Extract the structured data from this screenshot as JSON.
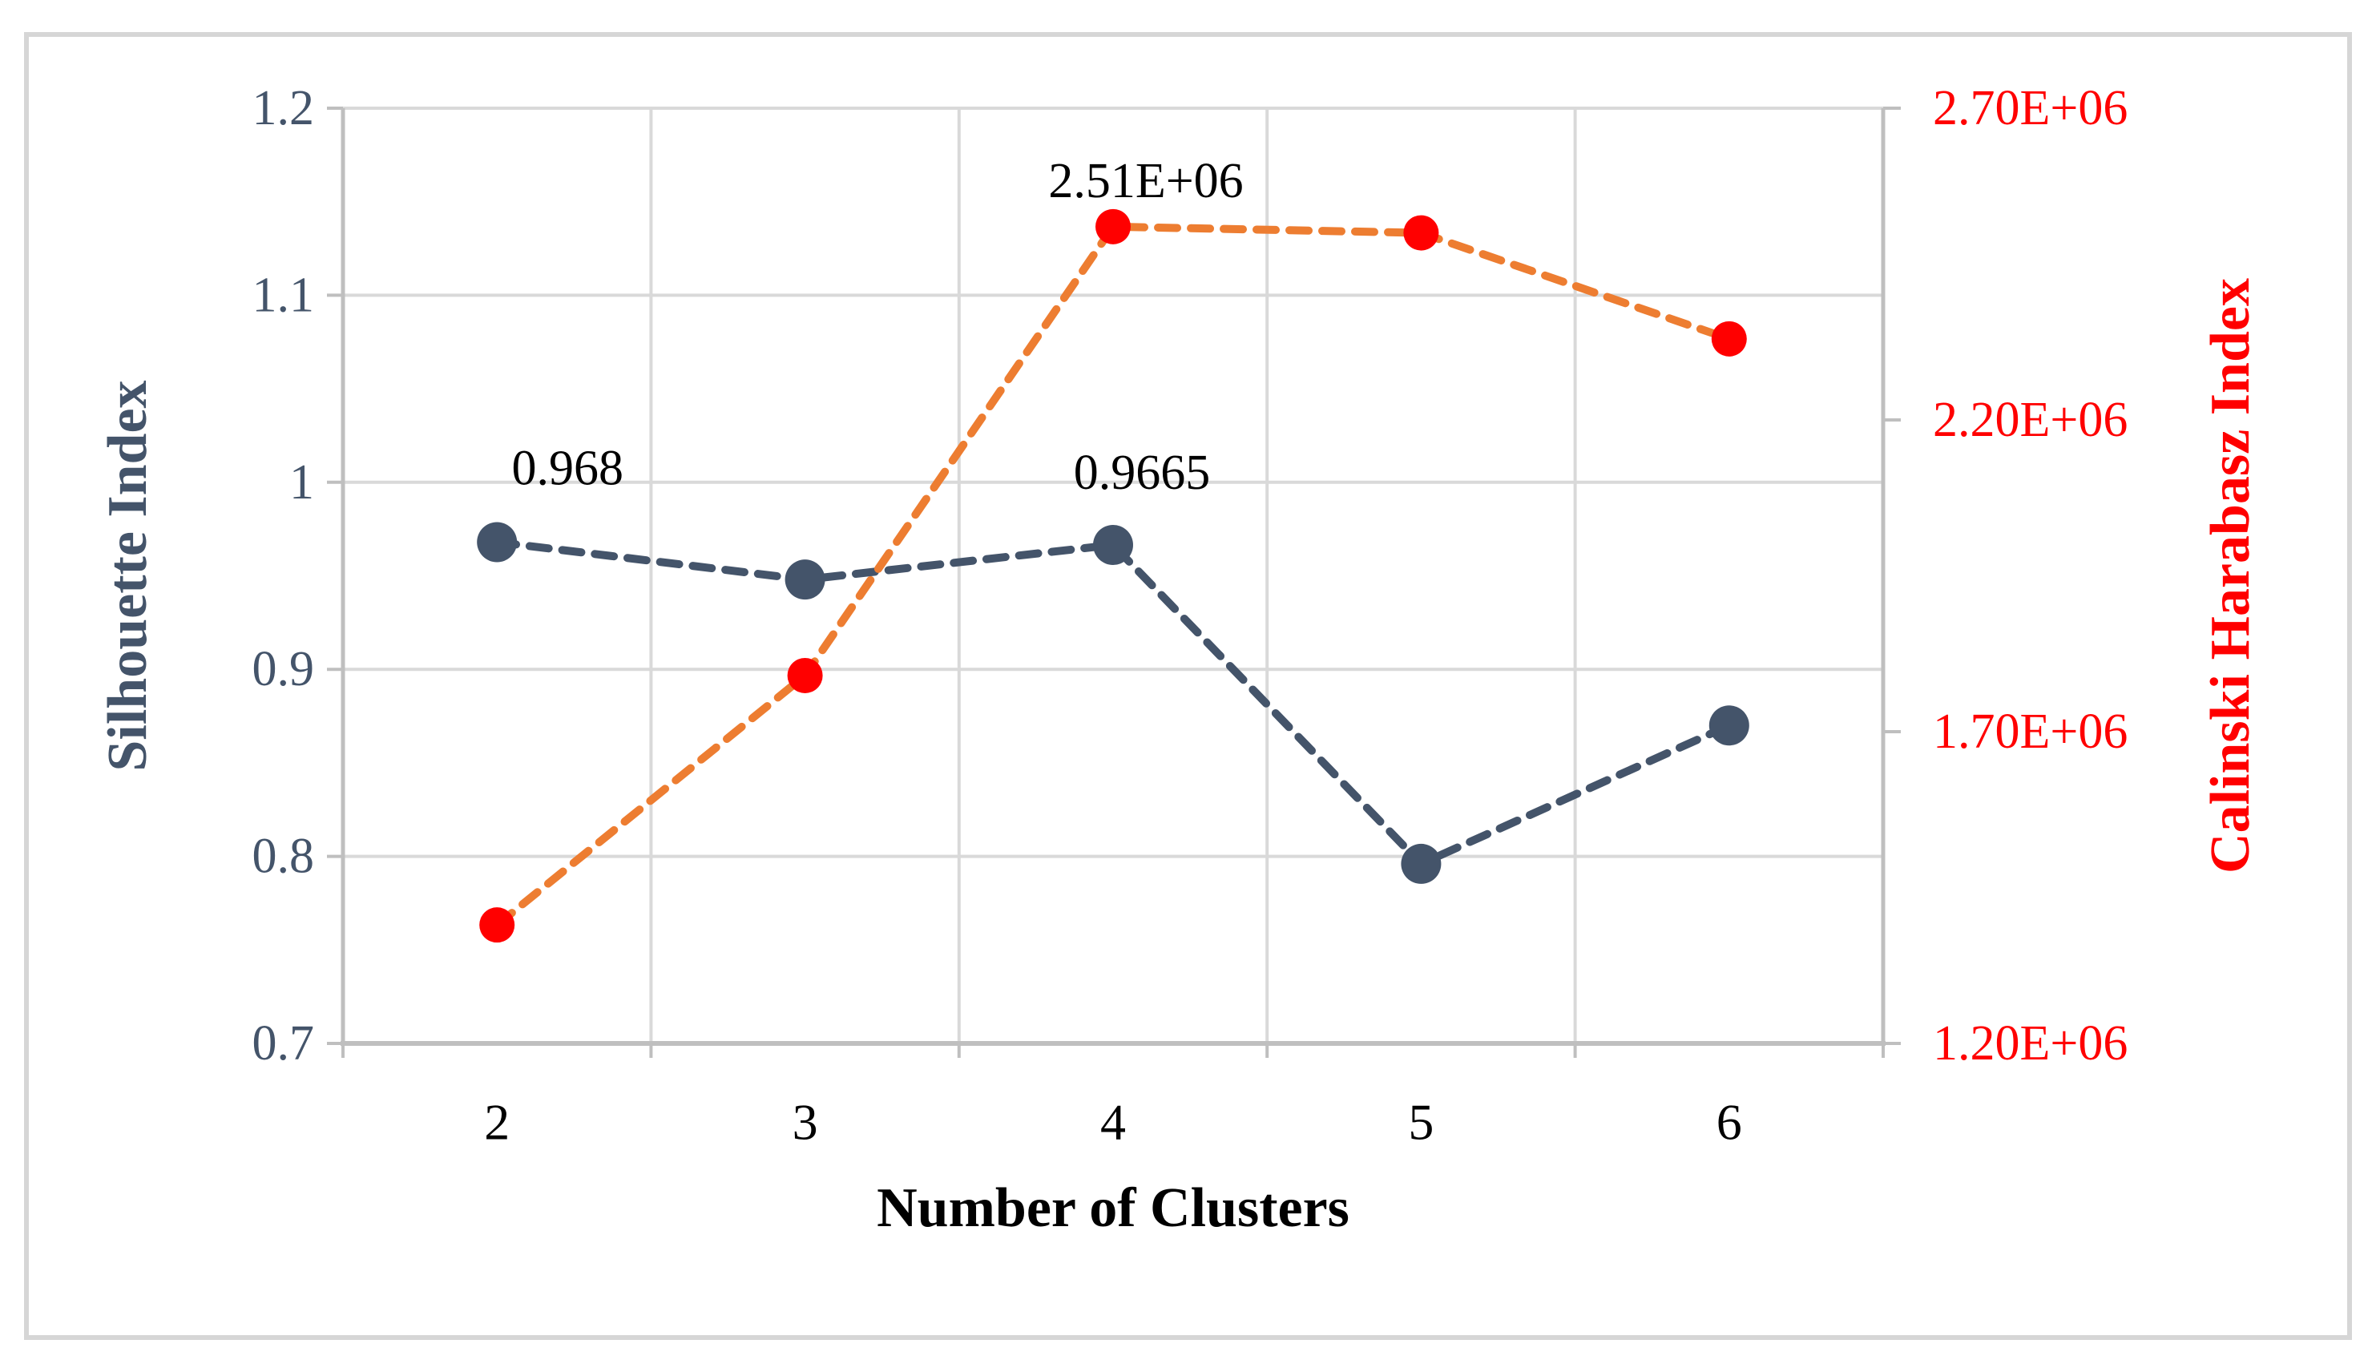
{
  "figure": {
    "background": "#FFFFFF",
    "border_color": "#D6D6D6"
  },
  "chart_data": {
    "type": "line",
    "categories": [
      "2",
      "3",
      "4",
      "5",
      "6"
    ],
    "x_axis": {
      "title": "Number of Clusters",
      "label_color": "#000000"
    },
    "left_axis": {
      "title": "Silhouette Index",
      "color": "#44546A",
      "min": 0.7,
      "max": 1.2,
      "ticks": [
        {
          "value": 1.2,
          "label": "1.2"
        },
        {
          "value": 1.1,
          "label": "1.1"
        },
        {
          "value": 1.0,
          "label": "1"
        },
        {
          "value": 0.9,
          "label": "0.9"
        },
        {
          "value": 0.8,
          "label": "0.8"
        },
        {
          "value": 0.7,
          "label": "0.7"
        }
      ]
    },
    "right_axis": {
      "title": "Calinski Harabasz Index",
      "color": "#FF0000",
      "min": 1200000,
      "max": 2700000,
      "ticks": [
        {
          "value": 2700000,
          "label": "2.70E+06"
        },
        {
          "value": 2200000,
          "label": "2.20E+06"
        },
        {
          "value": 1700000,
          "label": "1.70E+06"
        },
        {
          "value": 1200000,
          "label": "1.20E+06"
        }
      ]
    },
    "grid": {
      "gridline_color": "#D9D9D9",
      "axis_line_color": "#BFBFBF",
      "grid_on": true,
      "legend": "none"
    },
    "series": [
      {
        "name": "Silhouette Index",
        "axis": "left",
        "line_color": "#44546A",
        "marker_color": "#44546A",
        "line_style": "dashed",
        "values": [
          0.968,
          0.948,
          0.9665,
          0.796,
          0.87
        ],
        "data_labels": [
          {
            "index": 0,
            "text": "0.968",
            "dx": 88,
            "dy": -92
          },
          {
            "index": 2,
            "text": "0.9665",
            "dx": 36,
            "dy": -90
          }
        ]
      },
      {
        "name": "Calinski Harabasz Index",
        "axis": "right",
        "line_color": "#ED7D31",
        "marker_color": "#FF0000",
        "line_style": "dashed",
        "values": [
          1390000,
          1790000,
          2510000,
          2500000,
          2330000
        ],
        "data_labels": [
          {
            "index": 2,
            "text": "2.51E+06",
            "dx": 41,
            "dy": -57
          }
        ]
      }
    ],
    "data_label_color": "#000000"
  }
}
